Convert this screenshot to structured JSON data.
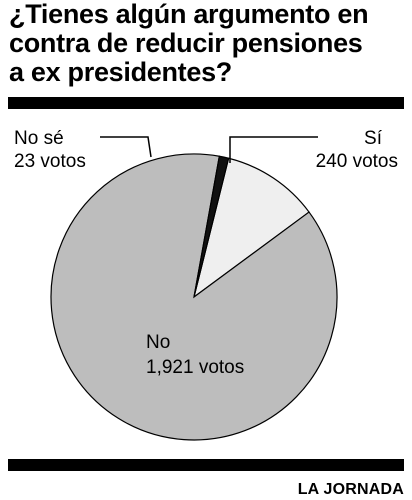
{
  "title_lines": [
    "¿Tienes algún argumento en",
    "contra de reducir pensiones",
    "a ex presidentes?"
  ],
  "credit": "LA JORNADA",
  "colors": {
    "si": "#efefef",
    "no": "#bdbdbd",
    "nose": "#111111",
    "stroke": "#000000"
  },
  "chart_data": {
    "type": "pie",
    "title": "¿Tienes algún argumento en contra de reducir pensiones a ex presidentes?",
    "slices": [
      {
        "label": "Sí",
        "value": 240,
        "value_text": "240 votos"
      },
      {
        "label": "No",
        "value": 1921,
        "value_text": "1,921 votos"
      },
      {
        "label": "No sé",
        "value": 23,
        "value_text": "23 votos"
      }
    ]
  }
}
